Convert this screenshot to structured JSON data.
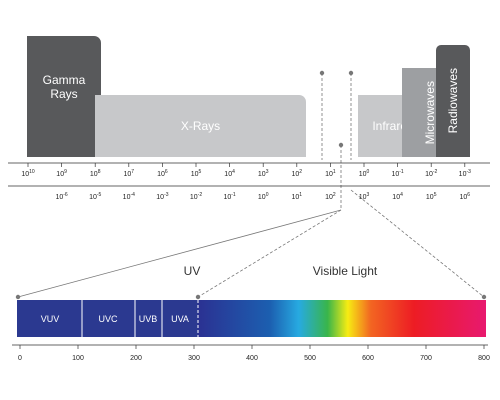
{
  "regions": {
    "gamma": "Gamma Rays",
    "xray": "X-Rays",
    "infrared": "Infrared",
    "microwaves": "Microwaves",
    "radiowaves": "Radiowaves"
  },
  "scale_top": [
    {
      "base": "10",
      "exponent": "10"
    },
    {
      "base": "10",
      "exponent": "9"
    },
    {
      "base": "10",
      "exponent": "8"
    },
    {
      "base": "10",
      "exponent": "7"
    },
    {
      "base": "10",
      "exponent": "6"
    },
    {
      "base": "10",
      "exponent": "5"
    },
    {
      "base": "10",
      "exponent": "4"
    },
    {
      "base": "10",
      "exponent": "3"
    },
    {
      "base": "10",
      "exponent": "2"
    },
    {
      "base": "10",
      "exponent": "1"
    },
    {
      "base": "10",
      "exponent": "0"
    },
    {
      "base": "10",
      "exponent": "-1"
    },
    {
      "base": "10",
      "exponent": "-2"
    },
    {
      "base": "10",
      "exponent": "-3"
    }
  ],
  "scale_bottom": [
    {
      "base": "10",
      "exponent": "-6"
    },
    {
      "base": "10",
      "exponent": "-5"
    },
    {
      "base": "10",
      "exponent": "-4"
    },
    {
      "base": "10",
      "exponent": "-3"
    },
    {
      "base": "10",
      "exponent": "-2"
    },
    {
      "base": "10",
      "exponent": "-1"
    },
    {
      "base": "10",
      "exponent": "0"
    },
    {
      "base": "10",
      "exponent": "1"
    },
    {
      "base": "10",
      "exponent": "2"
    },
    {
      "base": "10",
      "exponent": "3"
    },
    {
      "base": "10",
      "exponent": "4"
    },
    {
      "base": "10",
      "exponent": "5"
    },
    {
      "base": "10",
      "exponent": "6"
    }
  ],
  "uv_label": "UV",
  "visible_label": "Visible Light",
  "uv_bands": [
    "VUV",
    "UVC",
    "UVB",
    "UVA"
  ],
  "wavelength_ticks": [
    0,
    100,
    200,
    300,
    400,
    500,
    600,
    700,
    800
  ]
}
